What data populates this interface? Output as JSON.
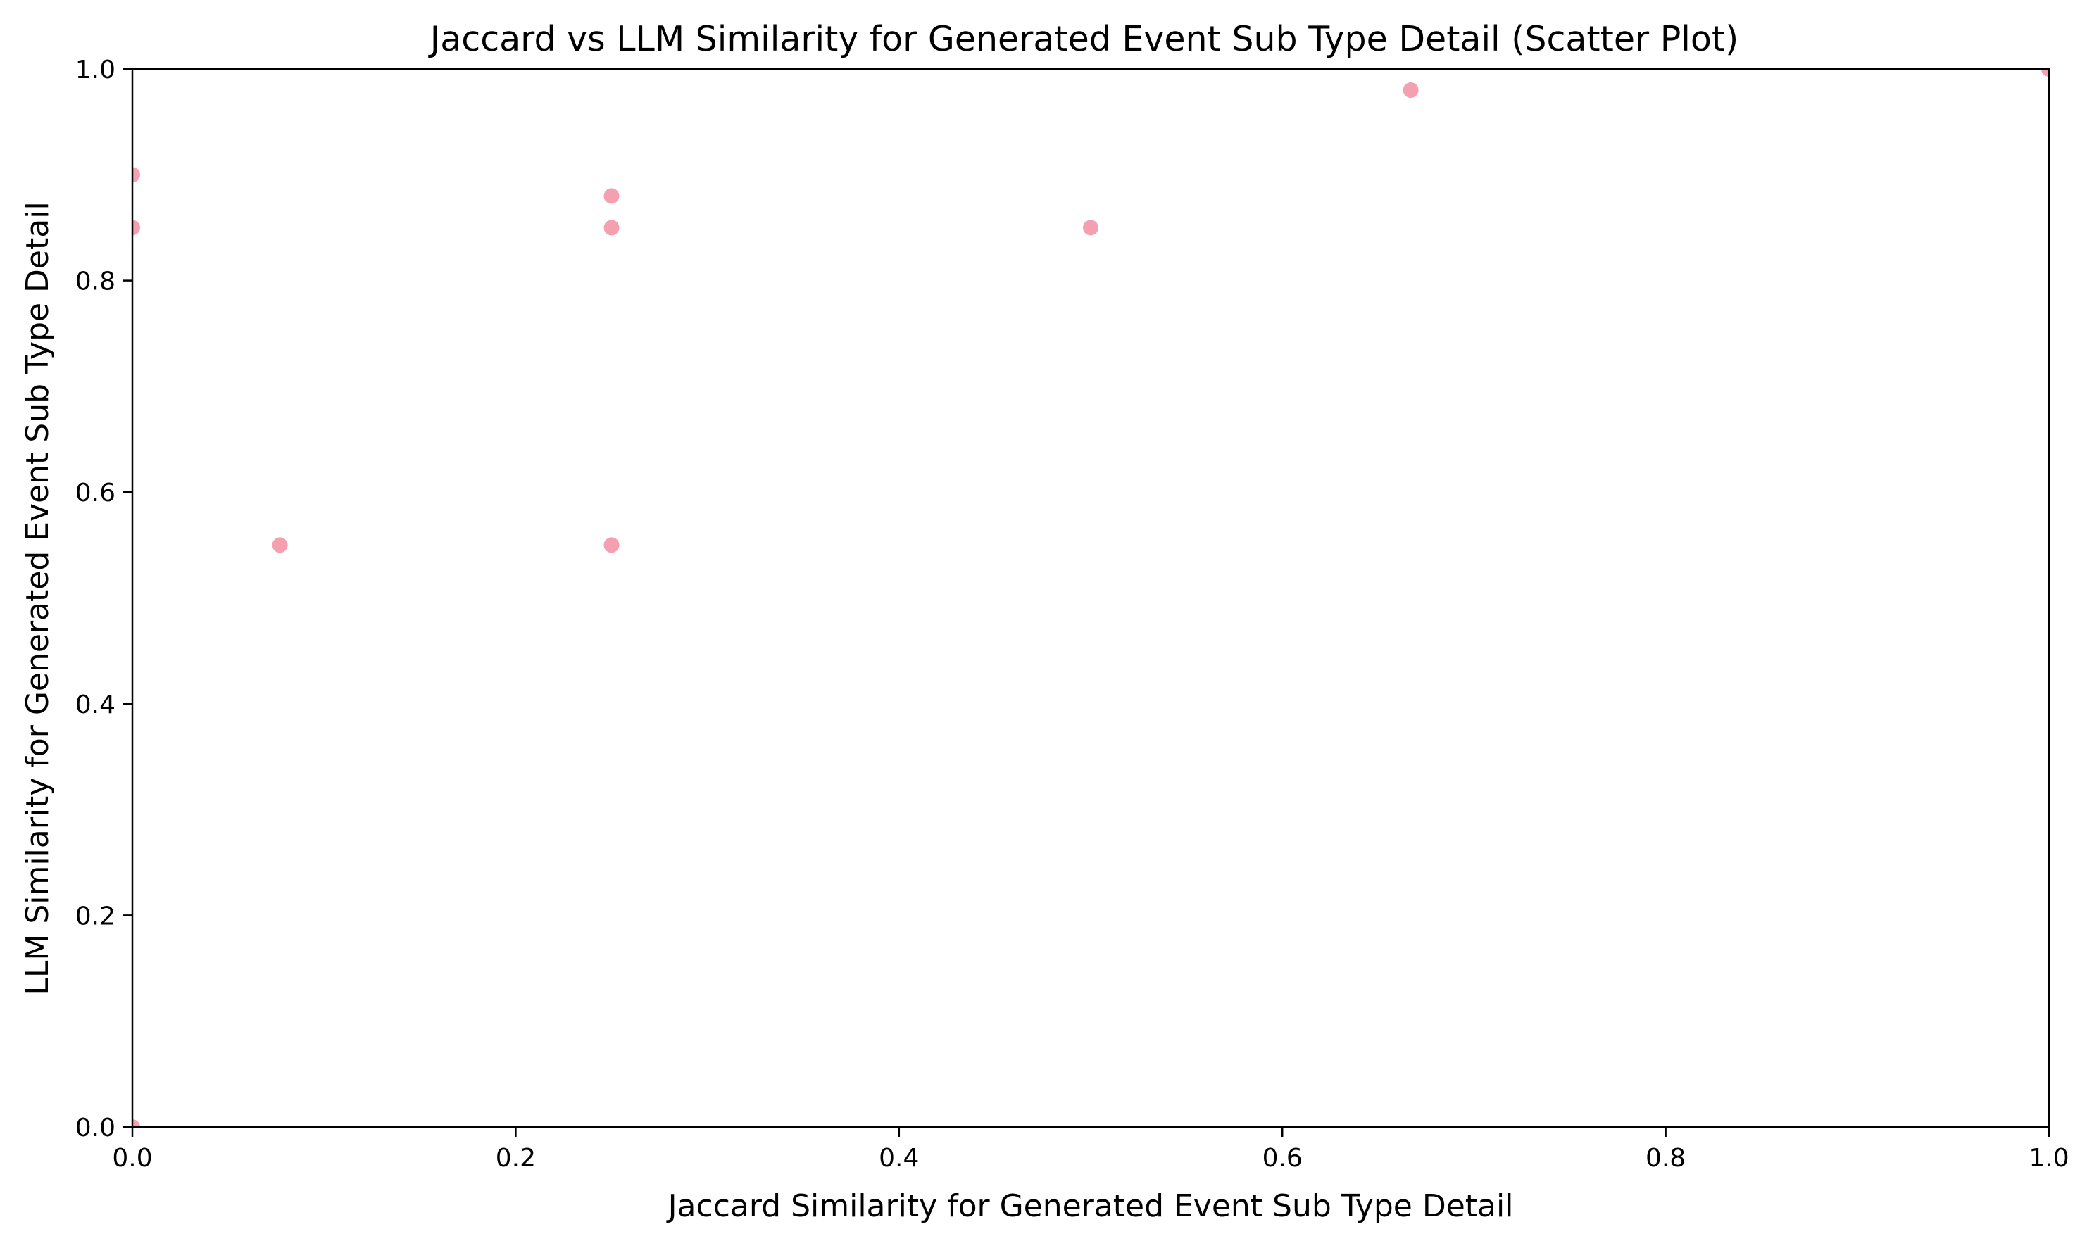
{
  "chart_data": {
    "type": "scatter",
    "title": "Jaccard vs LLM Similarity for Generated Event Sub Type Detail (Scatter Plot)",
    "xlabel": "Jaccard Similarity for Generated Event Sub Type Detail",
    "ylabel": "LLM Similarity for Generated Event Sub Type Detail",
    "xlim": [
      0.0,
      1.0
    ],
    "ylim": [
      0.0,
      1.0
    ],
    "xticks": [
      0.0,
      0.2,
      0.4,
      0.6,
      0.8,
      1.0
    ],
    "yticks": [
      0.0,
      0.2,
      0.4,
      0.6,
      0.8,
      1.0
    ],
    "xtick_labels": [
      "0.0",
      "0.2",
      "0.4",
      "0.6",
      "0.8",
      "1.0"
    ],
    "ytick_labels": [
      "0.0",
      "0.2",
      "0.4",
      "0.6",
      "0.8",
      "1.0"
    ],
    "grid": false,
    "legend": "none",
    "marker_color": "#f4a0b1",
    "points": [
      {
        "x": 0.0,
        "y": 0.9
      },
      {
        "x": 0.0,
        "y": 0.85
      },
      {
        "x": 0.0,
        "y": 0.0
      },
      {
        "x": 0.077,
        "y": 0.55
      },
      {
        "x": 0.25,
        "y": 0.88
      },
      {
        "x": 0.25,
        "y": 0.85
      },
      {
        "x": 0.25,
        "y": 0.55
      },
      {
        "x": 0.5,
        "y": 0.85
      },
      {
        "x": 0.667,
        "y": 0.98
      },
      {
        "x": 1.0,
        "y": 1.0
      }
    ]
  }
}
